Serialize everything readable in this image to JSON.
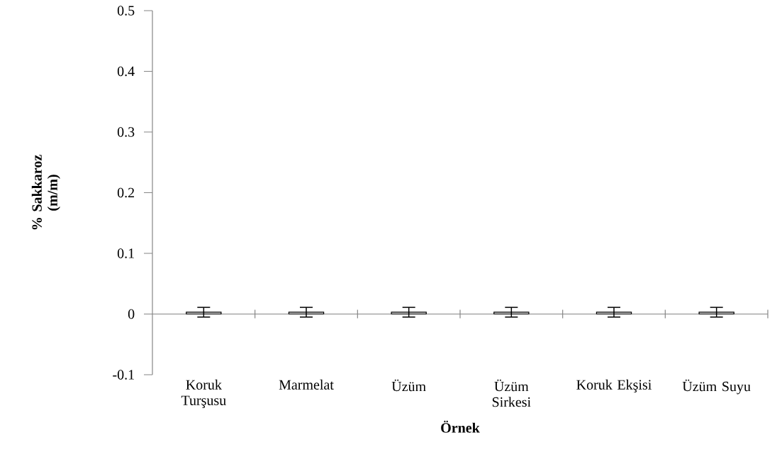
{
  "chart_data": {
    "type": "bar",
    "xlabel": "Örnek",
    "ylabel": "% Sakkaroz (m/m)",
    "categories": [
      "Koruk Turşusu",
      "Marmelat",
      "Üzüm",
      "Üzüm Sirkesi",
      "Koruk Ekşisi",
      "Üzüm Suyu"
    ],
    "values": [
      0.003,
      0.003,
      0.003,
      0.003,
      0.003,
      0.003
    ],
    "errors": [
      0.008,
      0.008,
      0.008,
      0.008,
      0.008,
      0.008
    ],
    "color": "#d9d9d9",
    "ylim": [
      -0.1,
      0.5
    ],
    "yticks": [
      -0.1,
      0,
      0.1,
      0.2,
      0.3,
      0.4,
      0.5
    ]
  }
}
